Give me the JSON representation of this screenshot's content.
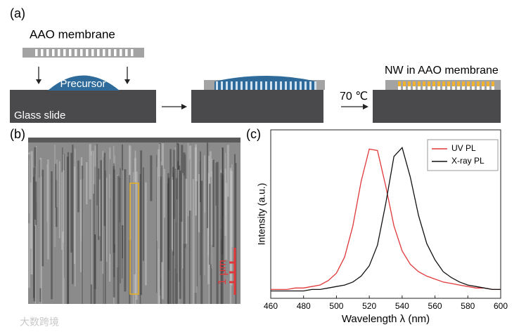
{
  "panel_a": {
    "label": "(a)",
    "membrane": "AAO membrane",
    "precursor": "Precursor",
    "substrate": "Glass slide",
    "temperature": "70 ℃",
    "result": "NW in AAO membrane"
  },
  "panel_b": {
    "label": "(b)",
    "scale_bar": "1 μm"
  },
  "watermark": "大数跨境",
  "chart_data": {
    "type": "line",
    "panel_label": "(c)",
    "xlabel": "Wavelength λ (nm)",
    "ylabel": "Intensity (a.u.)",
    "x": [
      460,
      465,
      470,
      475,
      480,
      485,
      490,
      495,
      500,
      505,
      510,
      515,
      520,
      525,
      530,
      535,
      540,
      545,
      550,
      555,
      560,
      565,
      570,
      575,
      580,
      585,
      590,
      595,
      600
    ],
    "series": [
      {
        "name": "UV PL",
        "color": "#e0383a",
        "values": [
          0.02,
          0.02,
          0.02,
          0.03,
          0.03,
          0.04,
          0.05,
          0.08,
          0.13,
          0.24,
          0.45,
          0.75,
          0.97,
          0.96,
          0.72,
          0.45,
          0.28,
          0.19,
          0.14,
          0.11,
          0.09,
          0.07,
          0.06,
          0.05,
          0.04,
          0.03,
          0.03,
          0.02,
          0.02
        ]
      },
      {
        "name": "X-ray PL",
        "color": "#111111",
        "values": [
          0.01,
          0.01,
          0.01,
          0.01,
          0.01,
          0.02,
          0.02,
          0.03,
          0.04,
          0.05,
          0.07,
          0.11,
          0.18,
          0.32,
          0.6,
          0.92,
          0.98,
          0.78,
          0.52,
          0.33,
          0.22,
          0.14,
          0.1,
          0.07,
          0.05,
          0.04,
          0.03,
          0.02,
          0.02
        ]
      }
    ],
    "xlim": [
      460,
      600
    ],
    "xticks": [
      460,
      480,
      500,
      520,
      540,
      560,
      580,
      600
    ],
    "ylim": [
      -0.04,
      1.1
    ],
    "legend": "upper right"
  }
}
